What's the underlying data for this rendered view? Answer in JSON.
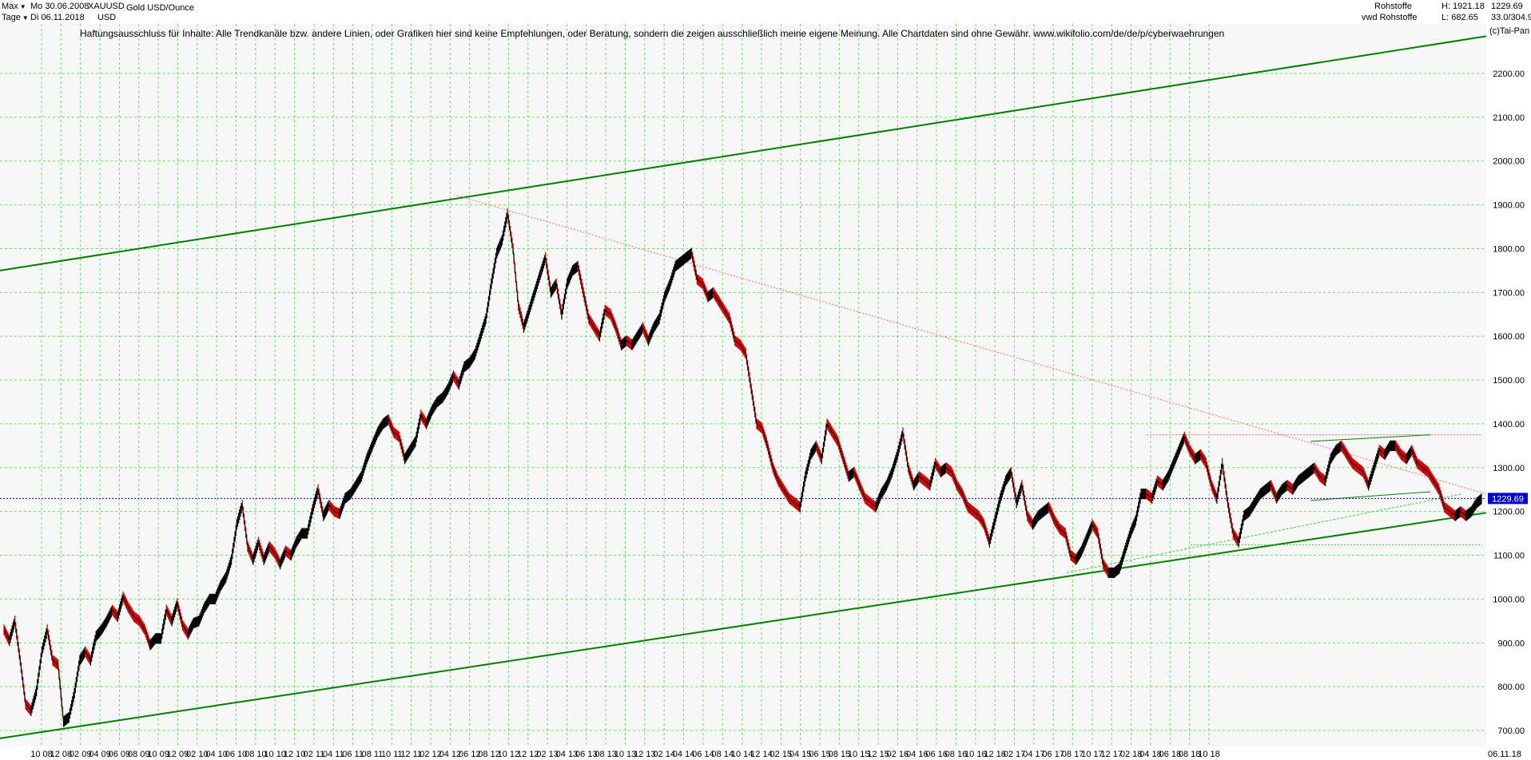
{
  "header": {
    "range_select": "Max",
    "interval_select": "Tage",
    "date_from": "Mo 30.06.2008",
    "date_to": "Di 06.11.2018",
    "symbol": "XAUUSD",
    "currency": "USD",
    "instrument_name": "Gold USD/Ounce",
    "category": "Rohstoffe",
    "source": "vwd Rohstoffe",
    "high_label": "H: 1921.18",
    "low_label": "L: 682.65",
    "last_value": "1229.69",
    "change_value": "33.0/304.9",
    "copyright": "(c)Tai-Pan"
  },
  "disclaimer": "Haftungsausschluss für Inhalte: Alle Trendkanäle bzw. andere Linien, oder Grafiken hier sind keine Empfehlungen, oder Beratung, sondern die zeigen ausschließlich meine eigene Meinung. Alle Chartdaten sind ohne Gewähr.  www.wikifolio.com/de/de/p/cyberwaehrungen",
  "colors": {
    "background": "#ffffff",
    "plot_bg": "#f7f7f7",
    "grid": "#33cc33",
    "trend_channel": "#008000",
    "trend_thin": "#33cc33",
    "resistance": "#ff6666",
    "current_line": "#0000cc",
    "candle_up": "#000000",
    "candle_down": "#cc0000"
  },
  "chart_data": {
    "type": "line",
    "title": "Gold USD/Ounce",
    "ylabel": "USD",
    "ylim": [
      682,
      2300
    ],
    "y_ticks": [
      700,
      800,
      900,
      1000,
      1100,
      1200,
      1300,
      1400,
      1500,
      1600,
      1700,
      1800,
      1900,
      2000,
      2100,
      2200
    ],
    "y_tick_labels": [
      "700.00",
      "800.00",
      "900.00",
      "1000.00",
      "1100.00",
      "1200.00",
      "1300.00",
      "1400.00",
      "1500.00",
      "1600.00",
      "1700.00",
      "1800.00",
      "1900.00",
      "2000.00",
      "2100.00",
      "2200.00"
    ],
    "x_tick_labels": [
      "10 08",
      "12 08",
      "02 09",
      "04 09",
      "06 09",
      "08 09",
      "10 09",
      "12 09",
      "02 10",
      "04 10",
      "06 10",
      "08 10",
      "10 10",
      "12 10",
      "02 11",
      "04 11",
      "06 11",
      "08 11",
      "10 11",
      "12 11",
      "02 12",
      "04 12",
      "06 12",
      "08 12",
      "10 12",
      "12 12",
      "02 13",
      "04 13",
      "06 13",
      "08 13",
      "10 13",
      "12 13",
      "02 14",
      "04 14",
      "06 14",
      "08 14",
      "10 14",
      "12 14",
      "02 15",
      "04 15",
      "06 15",
      "08 15",
      "10 15",
      "12 15",
      "02 16",
      "04 16",
      "06 16",
      "08 16",
      "10 16",
      "12 16",
      "02 17",
      "04 17",
      "06 17",
      "08 17",
      "10 17",
      "12 17",
      "02 18",
      "04 18",
      "06 18",
      "08 18",
      "10 18"
    ],
    "x_end_label": "06.11.18",
    "grid": true,
    "last_value": 1229.69,
    "series": [
      {
        "values": [
          930,
          905,
          950,
          860,
          760,
          745,
          790,
          880,
          930,
          860,
          850,
          720,
          730,
          785,
          860,
          880,
          860,
          915,
          930,
          950,
          975,
          960,
          1005,
          980,
          960,
          950,
          930,
          895,
          910,
          910,
          975,
          950,
          990,
          940,
          920,
          945,
          950,
          980,
          1000,
          1000,
          1030,
          1050,
          1090,
          1170,
          1215,
          1120,
          1090,
          1130,
          1090,
          1120,
          1105,
          1080,
          1110,
          1100,
          1130,
          1150,
          1150,
          1205,
          1250,
          1190,
          1215,
          1200,
          1195,
          1230,
          1240,
          1260,
          1280,
          1320,
          1350,
          1380,
          1400,
          1410,
          1380,
          1370,
          1320,
          1340,
          1360,
          1420,
          1400,
          1430,
          1450,
          1460,
          1480,
          1510,
          1490,
          1530,
          1540,
          1560,
          1600,
          1640,
          1720,
          1790,
          1820,
          1880,
          1800,
          1670,
          1620,
          1660,
          1700,
          1740,
          1780,
          1700,
          1720,
          1650,
          1720,
          1750,
          1760,
          1700,
          1640,
          1620,
          1600,
          1660,
          1650,
          1620,
          1580,
          1590,
          1580,
          1600,
          1620,
          1590,
          1620,
          1640,
          1690,
          1720,
          1760,
          1770,
          1780,
          1790,
          1730,
          1720,
          1690,
          1700,
          1680,
          1660,
          1640,
          1590,
          1580,
          1560,
          1480,
          1400,
          1390,
          1350,
          1300,
          1270,
          1250,
          1230,
          1220,
          1210,
          1280,
          1330,
          1350,
          1320,
          1400,
          1380,
          1360,
          1320,
          1280,
          1290,
          1260,
          1230,
          1220,
          1210,
          1240,
          1260,
          1290,
          1330,
          1380,
          1300,
          1260,
          1280,
          1270,
          1260,
          1310,
          1290,
          1300,
          1290,
          1260,
          1240,
          1210,
          1200,
          1190,
          1170,
          1130,
          1180,
          1230,
          1270,
          1290,
          1220,
          1260,
          1190,
          1170,
          1190,
          1200,
          1210,
          1180,
          1160,
          1150,
          1100,
          1090,
          1110,
          1140,
          1170,
          1150,
          1080,
          1060,
          1060,
          1070,
          1110,
          1150,
          1180,
          1240,
          1240,
          1230,
          1270,
          1260,
          1280,
          1310,
          1340,
          1370,
          1340,
          1320,
          1330,
          1310,
          1260,
          1230,
          1310,
          1220,
          1150,
          1130,
          1190,
          1200,
          1220,
          1240,
          1250,
          1260,
          1230,
          1250,
          1260,
          1250,
          1270,
          1280,
          1290,
          1300,
          1280,
          1270,
          1320,
          1340,
          1350,
          1330,
          1310,
          1300,
          1290,
          1260,
          1300,
          1340,
          1330,
          1350,
          1350,
          1330,
          1320,
          1340,
          1310,
          1300,
          1290,
          1270,
          1250,
          1210,
          1200,
          1190,
          1200,
          1190,
          1200,
          1220,
          1230
        ]
      }
    ],
    "overlays": {
      "upper_channel": [
        [
          "2008-06-30",
          1750
        ],
        [
          "2018-11-06",
          2285
        ]
      ],
      "lower_channel": [
        [
          "2008-06-30",
          682
        ],
        [
          "2018-11-06",
          1197
        ]
      ],
      "resistance_from_high": [
        [
          "2011-09-06",
          1921
        ],
        [
          "2018-11-06",
          1240
        ]
      ],
      "resistance_horizontal": 1375,
      "support_horizontal": 1124,
      "current_line": 1229.69
    }
  }
}
